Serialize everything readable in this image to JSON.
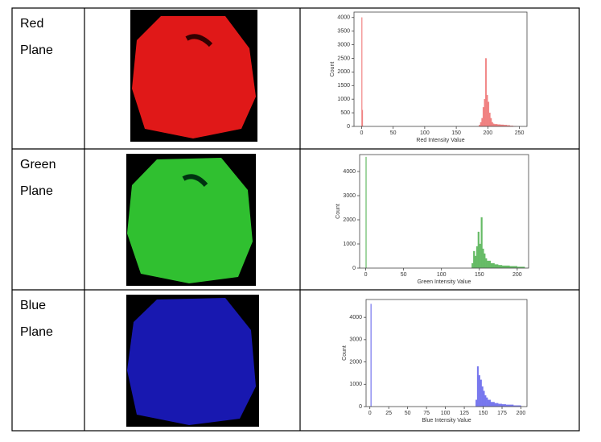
{
  "table": {
    "rows": [
      {
        "label": [
          "Red",
          "Plane"
        ]
      },
      {
        "label": [
          "Green",
          "Plane"
        ]
      },
      {
        "label": [
          "Blue",
          "Plane"
        ]
      }
    ]
  },
  "chart_data": [
    {
      "type": "histogram",
      "xlabel": "Red Intensity Value",
      "ylabel": "Count",
      "color": "#f08080",
      "bins": [
        0,
        1,
        2,
        186,
        188,
        190,
        192,
        194,
        196,
        198,
        200,
        202,
        204,
        206,
        208,
        210,
        215,
        220,
        225,
        230,
        235,
        240,
        245
      ],
      "values": [
        4000,
        600,
        0,
        50,
        150,
        300,
        700,
        1000,
        2500,
        1150,
        900,
        500,
        300,
        150,
        100,
        80,
        70,
        60,
        50,
        40,
        20,
        10
      ],
      "xlim": [
        -12,
        262
      ],
      "xticks": [
        0,
        50,
        100,
        150,
        200,
        250
      ],
      "ylim": [
        0,
        4200
      ],
      "yticks": [
        0,
        500,
        1000,
        1500,
        2000,
        2500,
        3000,
        3500,
        4000
      ]
    },
    {
      "type": "histogram",
      "xlabel": "Green Intensity Value",
      "ylabel": "Count",
      "color": "#66bb66",
      "bins": [
        0,
        1,
        140,
        142,
        144,
        146,
        148,
        150,
        152,
        154,
        156,
        158,
        160,
        165,
        170,
        175,
        180,
        190,
        200,
        210
      ],
      "values": [
        4600,
        0,
        200,
        700,
        500,
        900,
        1500,
        1000,
        2100,
        800,
        600,
        400,
        300,
        200,
        150,
        120,
        100,
        80,
        50
      ],
      "xlim": [
        -8,
        215
      ],
      "xticks": [
        0,
        50,
        100,
        150,
        200
      ],
      "ylim": [
        0,
        4700
      ],
      "yticks": [
        0,
        1000,
        2000,
        3000,
        4000
      ]
    },
    {
      "type": "histogram",
      "xlabel": "Blue Intensity Value",
      "ylabel": "Count",
      "color": "#7777ee",
      "bins": [
        1,
        2,
        140,
        142,
        144,
        146,
        148,
        150,
        152,
        154,
        156,
        160,
        165,
        170,
        175,
        180,
        190,
        200
      ],
      "values": [
        4600,
        0,
        300,
        1800,
        1400,
        1200,
        900,
        700,
        500,
        400,
        300,
        200,
        150,
        120,
        100,
        80,
        50
      ],
      "xlim": [
        -5,
        208
      ],
      "xticks": [
        0,
        25,
        50,
        75,
        100,
        125,
        150,
        175,
        200
      ],
      "ylim": [
        0,
        4800
      ],
      "yticks": [
        0,
        1000,
        2000,
        3000,
        4000
      ]
    }
  ]
}
